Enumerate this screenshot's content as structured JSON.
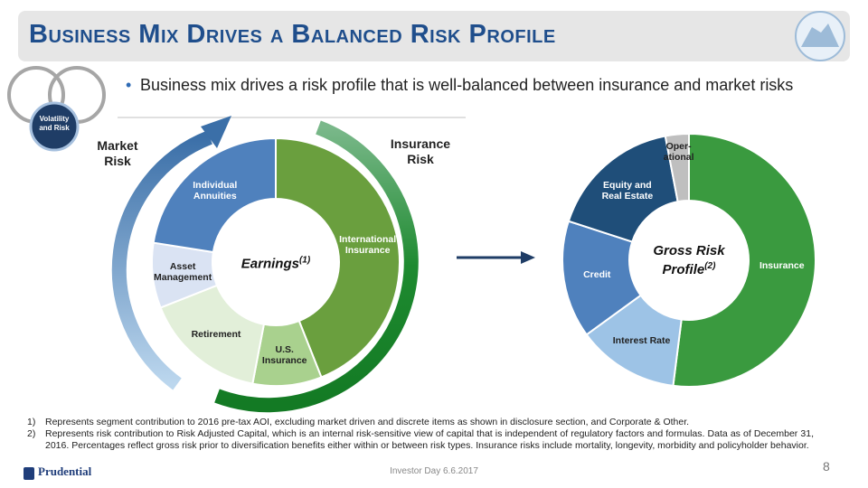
{
  "header": {
    "title": "Business Mix Drives a Balanced Risk Profile",
    "bullet": "Business mix drives a risk profile that is well-balanced between insurance and market risks"
  },
  "badge": "Volatility and Risk",
  "arrow_labels": {
    "market": "Market Risk",
    "insurance": "Insurance Risk"
  },
  "chart_data": [
    {
      "type": "pie",
      "donut": true,
      "center_label": "Earnings",
      "center_note": "(1)",
      "categories": [
        "International Insurance",
        "U.S. Insurance",
        "Retirement",
        "Asset Management",
        "Individual Annuities"
      ],
      "values": [
        44,
        9,
        16,
        8.5,
        22.5
      ],
      "colors": [
        "#6a9f3e",
        "#a9d18e",
        "#e2efd9",
        "#dae3f3",
        "#4f81bd"
      ]
    },
    {
      "type": "pie",
      "donut": true,
      "center_label": "Gross Risk Profile",
      "center_note": "(2)",
      "categories": [
        "Insurance",
        "Interest Rate",
        "Credit",
        "Equity and Real Estate",
        "Oper-ational"
      ],
      "values": [
        52,
        13,
        15,
        17,
        3
      ],
      "colors": [
        "#3a9a3f",
        "#9dc3e6",
        "#4f81bd",
        "#1f4e79",
        "#bfbfbf"
      ]
    }
  ],
  "footnotes": [
    {
      "marker": "1)",
      "text": "Represents segment contribution to 2016 pre-tax AOI, excluding market driven and discrete items as shown in disclosure section, and Corporate & Other."
    },
    {
      "marker": "2)",
      "text": "Represents risk contribution to Risk Adjusted Capital, which is an internal risk-sensitive view of capital that is independent of regulatory factors and formulas.  Data as of December 31, 2016.  Percentages reflect gross risk prior to diversification benefits either within or between risk types.  Insurance risks include mortality, longevity, morbidity and policyholder behavior."
    }
  ],
  "footer": "Investor Day 6.6.2017",
  "page": "8",
  "logo": "Prudential"
}
